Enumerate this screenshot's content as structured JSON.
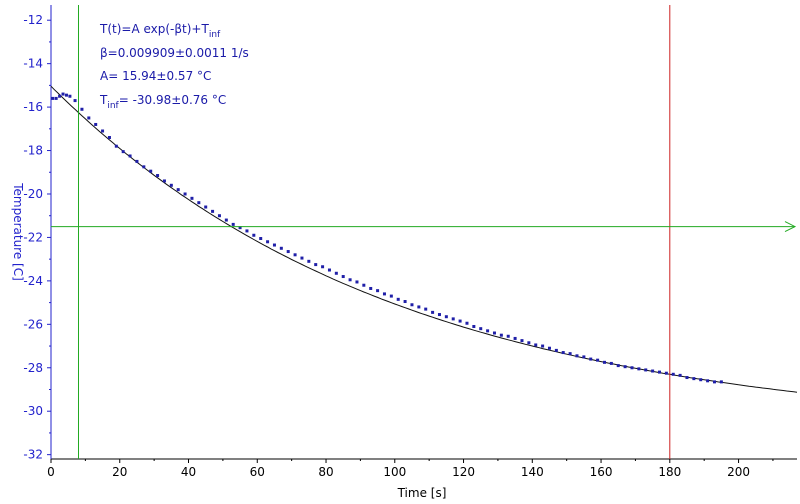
{
  "chart_data": {
    "type": "scatter",
    "xlabel": "Time [s]",
    "ylabel": "Temperature [C]",
    "xlim": [
      0,
      217
    ],
    "ylim": [
      -32.2,
      -11.3
    ],
    "x_ticks": [
      0,
      20,
      40,
      60,
      80,
      100,
      120,
      140,
      160,
      180,
      200
    ],
    "y_ticks": [
      -12,
      -14,
      -16,
      -18,
      -20,
      -22,
      -24,
      -26,
      -28,
      -30,
      -32
    ],
    "grid": false,
    "fit": {
      "formula_main": "T(t)=A exp(-βt)+T",
      "formula_sub": "inf",
      "beta_text": "β=0.009909±0.0011 1/s",
      "A_text": "A= 15.94±0.57 °C",
      "tinf_main": "T",
      "tinf_sub": "inf",
      "tinf_rest": "= -30.98±0.76 °C",
      "A": 15.94,
      "beta": 0.009909,
      "Tinf": -30.98,
      "x_range": [
        0,
        217
      ]
    },
    "cursors": {
      "vertical_green_x": 8,
      "vertical_red_x": 180,
      "horizontal_green_y": -21.5
    },
    "series": [
      {
        "color": "#1f1fa8",
        "x": [
          0.5,
          1.5,
          2.5,
          3.5,
          4.5,
          5.5,
          7,
          9,
          11,
          13,
          15,
          17,
          19,
          21,
          23,
          25,
          27,
          29,
          31,
          33,
          35,
          37,
          39,
          41,
          43,
          45,
          47,
          49,
          51,
          53,
          55,
          57,
          59,
          61,
          63,
          65,
          67,
          69,
          71,
          73,
          75,
          77,
          79,
          81,
          83,
          85,
          87,
          89,
          91,
          93,
          95,
          97,
          99,
          101,
          103,
          105,
          107,
          109,
          111,
          113,
          115,
          117,
          119,
          121,
          123,
          125,
          127,
          129,
          131,
          133,
          135,
          137,
          139,
          141,
          143,
          145,
          147,
          149,
          151,
          153,
          155,
          157,
          159,
          161,
          163,
          165,
          167,
          169,
          171,
          173,
          175,
          177,
          179,
          181,
          183,
          185,
          187,
          189,
          191,
          193,
          195
        ],
        "y": [
          -15.6,
          -15.6,
          -15.5,
          -15.4,
          -15.45,
          -15.5,
          -15.7,
          -16.1,
          -16.5,
          -16.8,
          -17.1,
          -17.4,
          -17.8,
          -18.05,
          -18.25,
          -18.5,
          -18.75,
          -18.95,
          -19.15,
          -19.4,
          -19.6,
          -19.8,
          -20.0,
          -20.2,
          -20.4,
          -20.6,
          -20.8,
          -21.0,
          -21.2,
          -21.4,
          -21.55,
          -21.7,
          -21.9,
          -22.05,
          -22.2,
          -22.35,
          -22.5,
          -22.65,
          -22.8,
          -22.95,
          -23.1,
          -23.25,
          -23.35,
          -23.5,
          -23.65,
          -23.8,
          -23.95,
          -24.05,
          -24.2,
          -24.35,
          -24.45,
          -24.6,
          -24.7,
          -24.85,
          -24.95,
          -25.1,
          -25.2,
          -25.3,
          -25.45,
          -25.55,
          -25.65,
          -25.75,
          -25.85,
          -25.95,
          -26.1,
          -26.2,
          -26.3,
          -26.4,
          -26.5,
          -26.55,
          -26.65,
          -26.75,
          -26.85,
          -26.95,
          -27.0,
          -27.1,
          -27.2,
          -27.3,
          -27.35,
          -27.45,
          -27.5,
          -27.6,
          -27.65,
          -27.75,
          -27.8,
          -27.9,
          -27.95,
          -28.0,
          -28.05,
          -28.1,
          -28.15,
          -28.2,
          -28.25,
          -28.3,
          -28.35,
          -28.45,
          -28.5,
          -28.55,
          -28.6,
          -28.65,
          -28.65
        ]
      }
    ]
  }
}
